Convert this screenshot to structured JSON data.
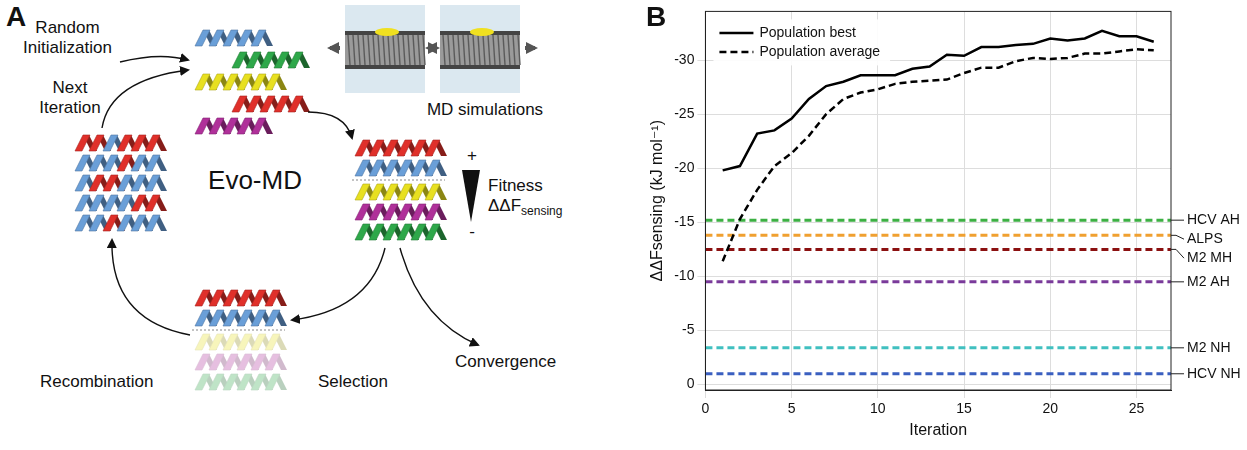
{
  "panel_a": {
    "letter": "A",
    "center_label": "Evo-MD",
    "labels": {
      "random_initialization": "Random Initialization",
      "next_iteration": "Next Iteration",
      "md_simulations": "MD simulations",
      "fitness": "Fitness",
      "fitness_symbol": "ΔΔF",
      "fitness_subscript": "sensing",
      "plus": "+",
      "minus": "-",
      "selection": "Selection",
      "convergence": "Convergence",
      "recombination": "Recombination"
    }
  },
  "chart_data": {
    "panel": "B",
    "type": "line",
    "x_label": "Iteration",
    "y_label": "ΔΔFsensing (kJ mol⁻¹)",
    "x": [
      1,
      2,
      3,
      4,
      5,
      6,
      7,
      8,
      9,
      10,
      11,
      12,
      13,
      14,
      15,
      16,
      17,
      18,
      19,
      20,
      21,
      22,
      23,
      24,
      25,
      26
    ],
    "series": [
      {
        "name": "Population best",
        "color": "#000000",
        "line_style": "solid",
        "values": [
          -19.8,
          -20.2,
          -23.2,
          -23.5,
          -24.6,
          -26.4,
          -27.6,
          -28.0,
          -28.6,
          -28.6,
          -28.6,
          -29.2,
          -29.4,
          -30.5,
          -30.4,
          -31.2,
          -31.2,
          -31.4,
          -31.5,
          -32.0,
          -31.8,
          -32.0,
          -32.7,
          -32.2,
          -32.2,
          -31.7
        ]
      },
      {
        "name": "Population average",
        "color": "#000000",
        "line_style": "dashed",
        "values": [
          -11.4,
          -15.3,
          -18.0,
          -20.2,
          -21.4,
          -23.0,
          -25.0,
          -26.4,
          -27.0,
          -27.3,
          -27.8,
          -28.0,
          -28.1,
          -28.2,
          -28.8,
          -29.3,
          -29.3,
          -29.9,
          -30.2,
          -30.1,
          -30.2,
          -30.6,
          -30.6,
          -30.8,
          -31.0,
          -30.9
        ]
      }
    ],
    "reference_lines": [
      {
        "name": "HCV AH",
        "value": -15.2,
        "color": "#3cb043",
        "line_style": "dashed"
      },
      {
        "name": "ALPS",
        "value": -13.8,
        "color": "#f0a030",
        "line_style": "dashed"
      },
      {
        "name": "M2 MH",
        "value": -12.5,
        "color": "#8b1010",
        "line_style": "dashed"
      },
      {
        "name": "M2 AH",
        "value": -9.5,
        "color": "#7a3a9a",
        "line_style": "dashed"
      },
      {
        "name": "M2 NH",
        "value": -3.4,
        "color": "#40c0c0",
        "line_style": "dashed"
      },
      {
        "name": "HCV NH",
        "value": -1.0,
        "color": "#3a5fc0",
        "line_style": "dashed"
      }
    ],
    "xlim": [
      0,
      27
    ],
    "xticks": [
      0,
      5,
      10,
      15,
      20,
      25
    ],
    "ylim": [
      0.5,
      -34.5
    ],
    "yticks": [
      -30,
      -25,
      -20,
      -15,
      -10,
      -5,
      0
    ],
    "grid": true,
    "legend": "upper left"
  }
}
